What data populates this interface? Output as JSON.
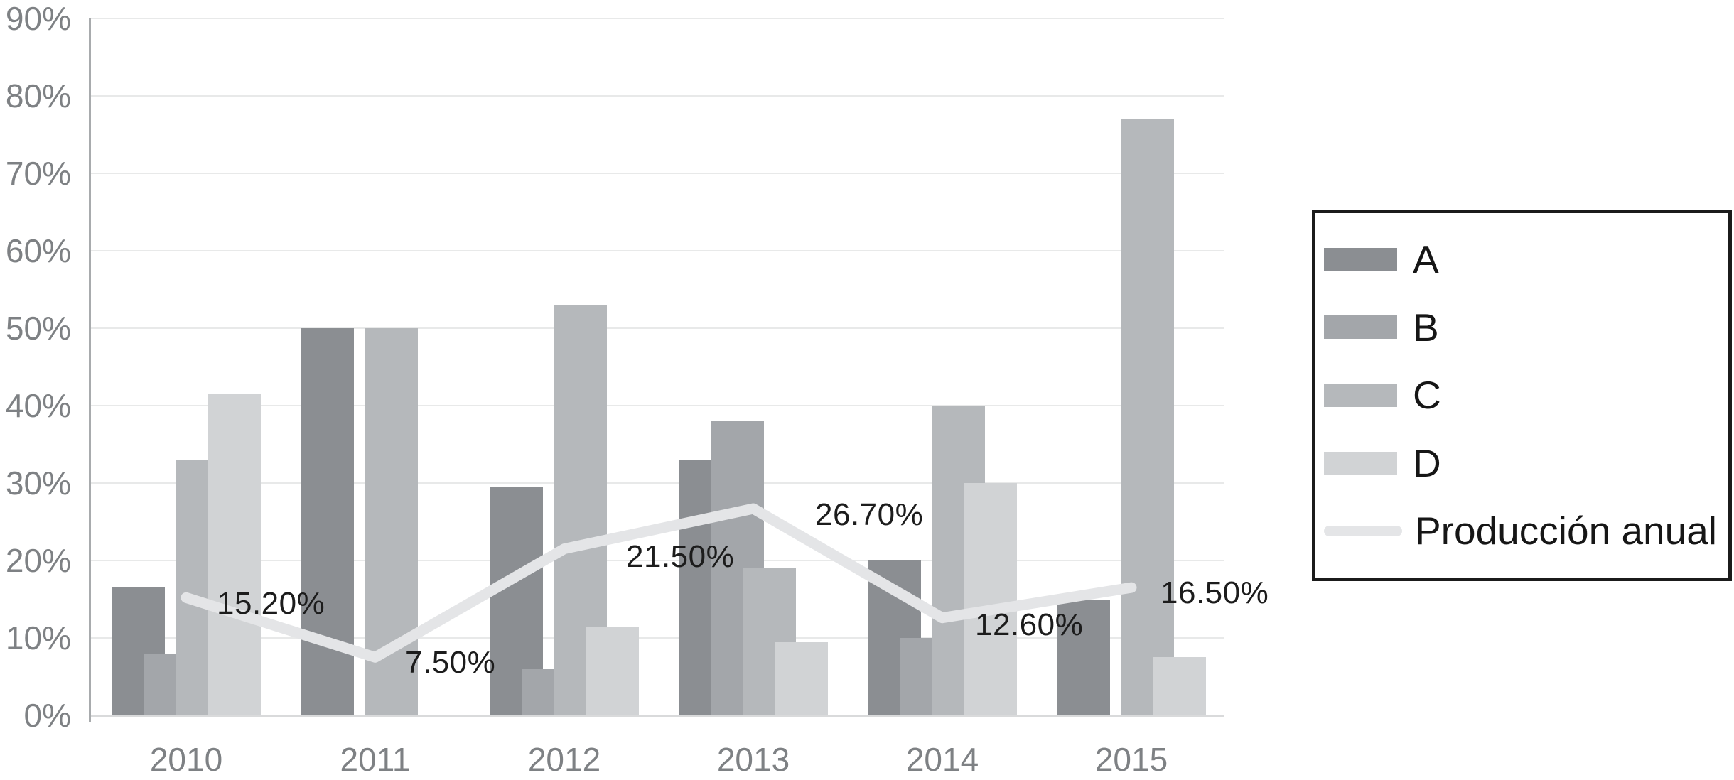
{
  "chart_data": {
    "type": "combo-bar-line",
    "title": "",
    "categories": [
      "2010",
      "2011",
      "2012",
      "2013",
      "2014",
      "2015"
    ],
    "bar_series": [
      {
        "name": "A",
        "color": "#8b8e92",
        "values": [
          16.5,
          50,
          29.5,
          33,
          20,
          15
        ]
      },
      {
        "name": "B",
        "color": "#a3a6aa",
        "values": [
          8,
          0,
          6,
          38,
          10,
          0
        ]
      },
      {
        "name": "C",
        "color": "#b5b8bb",
        "values": [
          33,
          50,
          53,
          19,
          40,
          77
        ]
      },
      {
        "name": "D",
        "color": "#d1d3d5",
        "values": [
          41.5,
          0,
          11.5,
          9.5,
          30,
          7.5
        ]
      }
    ],
    "line_series": {
      "name": "Producción anual",
      "color": "#e4e5e7",
      "values": [
        15.2,
        7.5,
        21.5,
        26.7,
        12.6,
        16.5
      ],
      "labels": [
        "15.20%",
        "7.50%",
        "21.50%",
        "26.70%",
        "12.60%",
        "16.50%"
      ],
      "label_dx": [
        43,
        42,
        87,
        87,
        46,
        41
      ],
      "label_dy": [
        9,
        8,
        11,
        9,
        10,
        8
      ]
    },
    "y_axis": {
      "min": 0,
      "max": 90,
      "tick_step": 10,
      "ticks": [
        "0%",
        "10%",
        "20%",
        "30%",
        "40%",
        "50%",
        "60%",
        "70%",
        "80%",
        "90%"
      ],
      "grid": true
    },
    "x_axis": {
      "labels": [
        "2010",
        "2011",
        "2012",
        "2013",
        "2014",
        "2015"
      ]
    },
    "legend": {
      "position": "right",
      "entries": [
        "A",
        "B",
        "C",
        "D",
        "Producción anual"
      ]
    }
  },
  "colors": {
    "gridline": "#e8e9e9",
    "baseline": "#d9dadb",
    "y_axis_line": "#a8abad",
    "axis_text": "#7e8184",
    "data_label_text": "#1c1c1c",
    "legend_border": "#1b1b1b",
    "legend_text": "#161616",
    "background": "#ffffff"
  }
}
